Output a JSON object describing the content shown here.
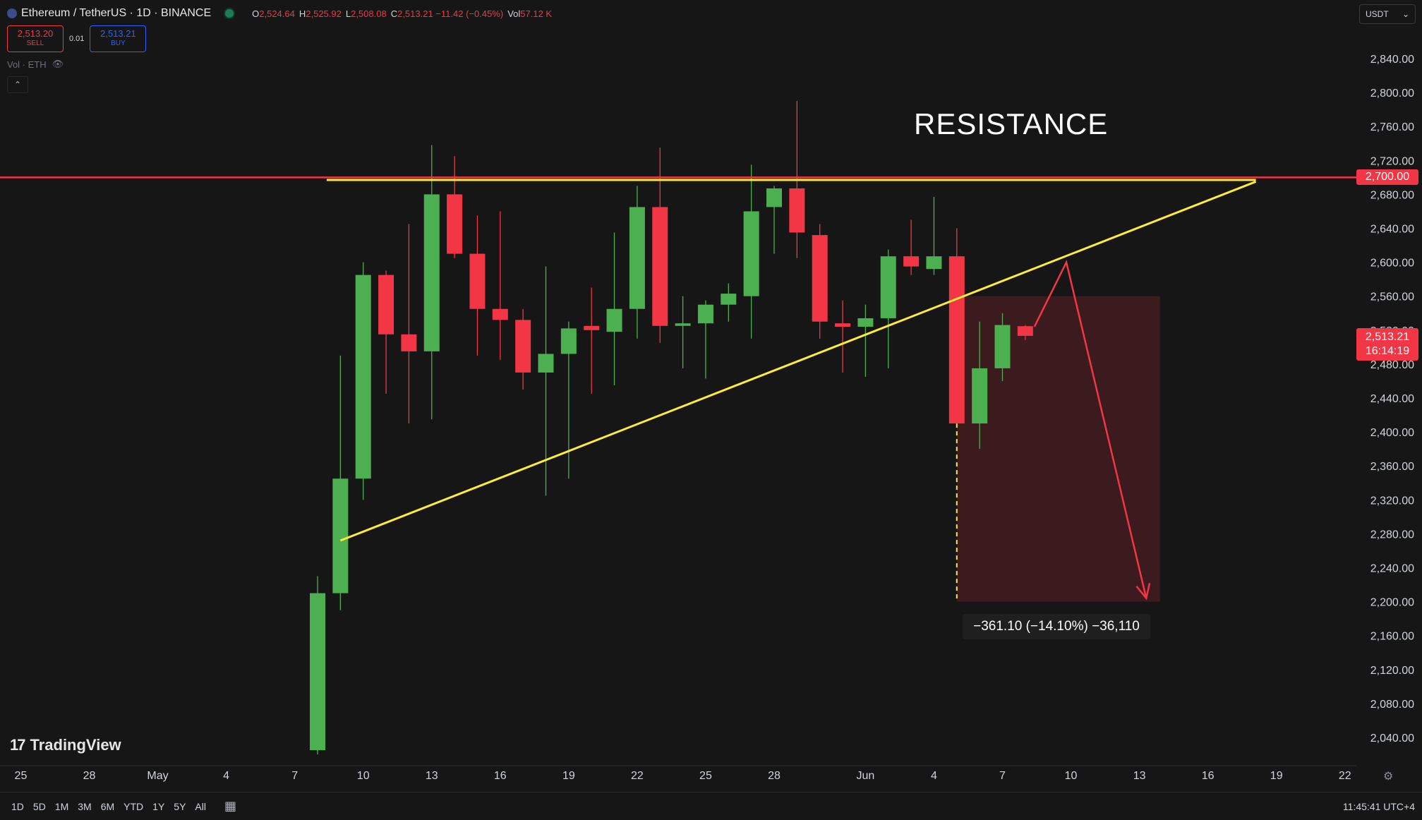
{
  "header": {
    "title": "Ethereum / TetherUS · 1D · BINANCE",
    "ohlc": [
      {
        "k": "O",
        "v": "2,524.64"
      },
      {
        "k": "H",
        "v": "2,525.92"
      },
      {
        "k": "L",
        "v": "2,508.08"
      },
      {
        "k": "C",
        "v": "2,513.21 −11.42 (−0.45%)"
      },
      {
        "k": "Vol",
        "v": "57.12 K"
      }
    ]
  },
  "trade": {
    "sell_price": "2,513.20",
    "sell_label": "SELL",
    "spread": "0.01",
    "buy_price": "2,513.21",
    "buy_label": "BUY"
  },
  "volume_label": "Vol · ETH",
  "collapse_label": "⌃",
  "currency_select": "USDT",
  "annotation": "RESISTANCE",
  "measure_label": "−361.10 (−14.10%) −36,110",
  "resistance_label": "2,700.00",
  "last_price": "2,513.21",
  "countdown": "16:14:19",
  "brand": "TradingView",
  "ranges": [
    "1D",
    "5D",
    "1M",
    "3M",
    "6M",
    "YTD",
    "1Y",
    "5Y",
    "All"
  ],
  "clock": "11:45:41 UTC+4",
  "colors": {
    "up": "#4caf50",
    "down": "#f23645",
    "trendline": "#ffeb3b",
    "resistance": "#f23645"
  },
  "chart_data": {
    "type": "candlestick",
    "title": "Ethereum / TetherUS · 1D · BINANCE",
    "ylim": [
      2020,
      2880
    ],
    "y_ticks": [
      "2,040.00",
      "2,080.00",
      "2,120.00",
      "2,160.00",
      "2,200.00",
      "2,240.00",
      "2,280.00",
      "2,320.00",
      "2,360.00",
      "2,400.00",
      "2,440.00",
      "2,480.00",
      "2,520.00",
      "2,560.00",
      "2,600.00",
      "2,640.00",
      "2,680.00",
      "2,720.00",
      "2,760.00",
      "2,800.00",
      "2,840.00"
    ],
    "x_ticks": [
      {
        "label": "25",
        "i": -13
      },
      {
        "label": "28",
        "i": -10
      },
      {
        "label": "May",
        "i": -7
      },
      {
        "label": "4",
        "i": -4
      },
      {
        "label": "7",
        "i": -1
      },
      {
        "label": "10",
        "i": 2
      },
      {
        "label": "13",
        "i": 5
      },
      {
        "label": "16",
        "i": 8
      },
      {
        "label": "19",
        "i": 11
      },
      {
        "label": "22",
        "i": 14
      },
      {
        "label": "25",
        "i": 17
      },
      {
        "label": "28",
        "i": 20
      },
      {
        "label": "Jun",
        "i": 24
      },
      {
        "label": "4",
        "i": 27
      },
      {
        "label": "7",
        "i": 30
      },
      {
        "label": "10",
        "i": 33
      },
      {
        "label": "13",
        "i": 36
      },
      {
        "label": "16",
        "i": 39
      },
      {
        "label": "19",
        "i": 42
      },
      {
        "label": "22",
        "i": 45
      }
    ],
    "candles": [
      {
        "i": 0,
        "date": "May 8",
        "o": 2025,
        "h": 2230,
        "l": 2020,
        "c": 2210
      },
      {
        "i": 1,
        "date": "May 9",
        "o": 2210,
        "h": 2490,
        "l": 2190,
        "c": 2345
      },
      {
        "i": 2,
        "date": "May 10",
        "o": 2345,
        "h": 2600,
        "l": 2320,
        "c": 2585
      },
      {
        "i": 3,
        "date": "May 11",
        "o": 2585,
        "h": 2590,
        "l": 2445,
        "c": 2515
      },
      {
        "i": 4,
        "date": "May 12",
        "o": 2515,
        "h": 2645,
        "l": 2410,
        "c": 2495
      },
      {
        "i": 5,
        "date": "May 13",
        "o": 2495,
        "h": 2738,
        "l": 2415,
        "c": 2680
      },
      {
        "i": 6,
        "date": "May 14",
        "o": 2680,
        "h": 2725,
        "l": 2605,
        "c": 2610
      },
      {
        "i": 7,
        "date": "May 15",
        "o": 2610,
        "h": 2655,
        "l": 2490,
        "c": 2545
      },
      {
        "i": 8,
        "date": "May 16",
        "o": 2545,
        "h": 2660,
        "l": 2485,
        "c": 2532
      },
      {
        "i": 9,
        "date": "May 17",
        "o": 2532,
        "h": 2545,
        "l": 2450,
        "c": 2470
      },
      {
        "i": 10,
        "date": "May 18",
        "o": 2470,
        "h": 2595,
        "l": 2325,
        "c": 2492
      },
      {
        "i": 11,
        "date": "May 19",
        "o": 2492,
        "h": 2530,
        "l": 2345,
        "c": 2522
      },
      {
        "i": 12,
        "date": "May 20",
        "o": 2525,
        "h": 2570,
        "l": 2445,
        "c": 2520
      },
      {
        "i": 13,
        "date": "May 21",
        "o": 2518,
        "h": 2635,
        "l": 2455,
        "c": 2545
      },
      {
        "i": 14,
        "date": "May 22",
        "o": 2545,
        "h": 2690,
        "l": 2510,
        "c": 2665
      },
      {
        "i": 15,
        "date": "May 23",
        "o": 2665,
        "h": 2735,
        "l": 2505,
        "c": 2525
      },
      {
        "i": 16,
        "date": "May 24",
        "o": 2525,
        "h": 2560,
        "l": 2475,
        "c": 2528
      },
      {
        "i": 17,
        "date": "May 25",
        "o": 2528,
        "h": 2555,
        "l": 2463,
        "c": 2550
      },
      {
        "i": 18,
        "date": "May 26",
        "o": 2550,
        "h": 2575,
        "l": 2530,
        "c": 2563
      },
      {
        "i": 19,
        "date": "May 27",
        "o": 2560,
        "h": 2715,
        "l": 2510,
        "c": 2660
      },
      {
        "i": 20,
        "date": "May 28",
        "o": 2665,
        "h": 2690,
        "l": 2610,
        "c": 2687
      },
      {
        "i": 21,
        "date": "May 29",
        "o": 2687,
        "h": 2790,
        "l": 2605,
        "c": 2635
      },
      {
        "i": 22,
        "date": "May 30",
        "o": 2632,
        "h": 2645,
        "l": 2510,
        "c": 2530
      },
      {
        "i": 23,
        "date": "May 31",
        "o": 2528,
        "h": 2555,
        "l": 2470,
        "c": 2524
      },
      {
        "i": 24,
        "date": "Jun 1",
        "o": 2524,
        "h": 2550,
        "l": 2465,
        "c": 2534
      },
      {
        "i": 25,
        "date": "Jun 2",
        "o": 2534,
        "h": 2615,
        "l": 2475,
        "c": 2607
      },
      {
        "i": 26,
        "date": "Jun 3",
        "o": 2607,
        "h": 2650,
        "l": 2585,
        "c": 2595
      },
      {
        "i": 27,
        "date": "Jun 4",
        "o": 2592,
        "h": 2677,
        "l": 2585,
        "c": 2607
      },
      {
        "i": 28,
        "date": "Jun 5",
        "o": 2607,
        "h": 2640,
        "l": 2410,
        "c": 2410
      },
      {
        "i": 29,
        "date": "Jun 6",
        "o": 2410,
        "h": 2530,
        "l": 2380,
        "c": 2475
      },
      {
        "i": 30,
        "date": "Jun 7",
        "o": 2475,
        "h": 2540,
        "l": 2460,
        "c": 2526
      },
      {
        "i": 31,
        "date": "Jun 8",
        "o": 2524.64,
        "h": 2525.92,
        "l": 2508.08,
        "c": 2513.21
      }
    ],
    "resistance_level": 2700,
    "trendlines": [
      {
        "from": {
          "i": 1,
          "y": 2272
        },
        "to": {
          "i": 41.1,
          "y": 2695
        }
      },
      {
        "from": {
          "i": 0.4,
          "y": 2697
        },
        "to": {
          "i": 41.1,
          "y": 2697
        }
      }
    ],
    "projection": {
      "path": [
        {
          "i": 31.4,
          "y": 2524
        },
        {
          "i": 32.8,
          "y": 2600
        },
        {
          "i": 36.3,
          "y": 2204
        }
      ]
    },
    "measure_box": {
      "i_start": 28,
      "i_end": 36.9,
      "y_top": 2560,
      "y_bottom": 2200
    }
  }
}
